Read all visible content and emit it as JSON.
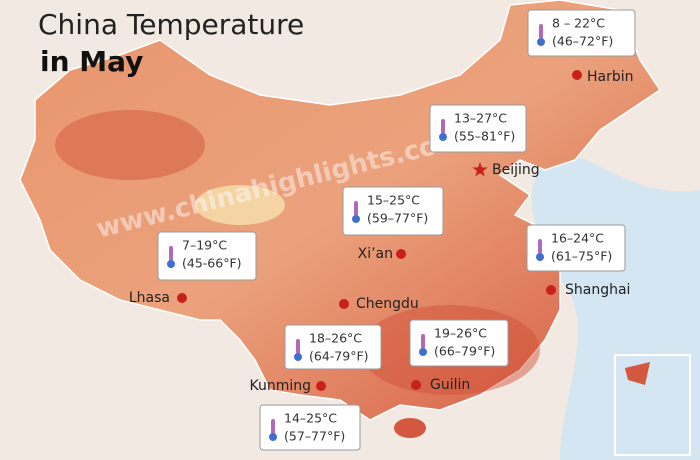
{
  "title": [
    "China Temperature",
    "in May"
  ],
  "watermark": "www.chinahighlights.com",
  "cities": [
    {
      "name": "Harbin",
      "temp_c": "8 – 22°C",
      "temp_f": "(46–72°F)"
    },
    {
      "name": "Beijing",
      "temp_c": "13–27°C",
      "temp_f": "(55–81°F)"
    },
    {
      "name": "Xi’an",
      "temp_c": "15–25°C",
      "temp_f": "(59–77°F)"
    },
    {
      "name": "Lhasa",
      "temp_c": "7–19°C",
      "temp_f": "(45-66°F)"
    },
    {
      "name": "Shanghai",
      "temp_c": "16–24°C",
      "temp_f": "(61–75°F)"
    },
    {
      "name": "Chengdu",
      "temp_c": "18–26°C",
      "temp_f": "(64-79°F)"
    },
    {
      "name": "Kunming",
      "temp_c": "14–25°C",
      "temp_f": "(57–77°F)"
    },
    {
      "name": "Guilin",
      "temp_c": "19–26°C",
      "temp_f": "(66–79°F)"
    }
  ]
}
